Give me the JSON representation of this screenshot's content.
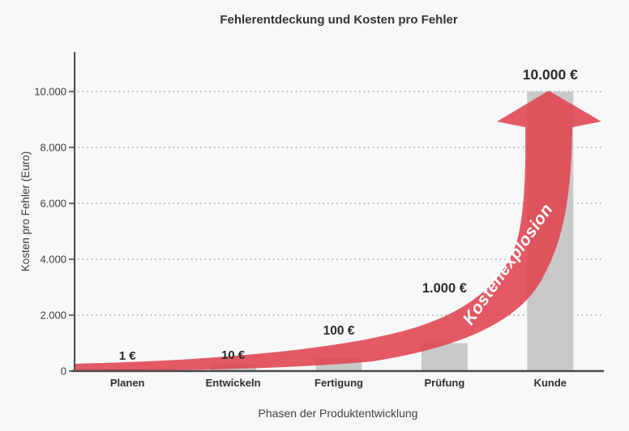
{
  "page": {
    "background": "#f7f8fa"
  },
  "chart_data": {
    "type": "bar",
    "title": "Fehlerentdeckung und Kosten pro Fehler",
    "xlabel": "Phasen der Produktentwicklung",
    "ylabel": "Kosten pro Fehler (Euro)",
    "categories": [
      "Planen",
      "Entwickeln",
      "Fertigung",
      "Prüfung",
      "Kunde"
    ],
    "values": [
      1,
      10,
      100,
      1000,
      10000
    ],
    "value_labels": [
      "1 €",
      "10 €",
      "100 €",
      "1.000 €",
      "10.000 €"
    ],
    "ylim": [
      0,
      10000
    ],
    "ytick_values": [
      0,
      2000,
      4000,
      6000,
      8000,
      10000
    ],
    "ytick_labels": [
      "0",
      "2.000",
      "4.000",
      "6.000",
      "8.000",
      "10.000"
    ],
    "grid": "horizontal-dotted",
    "legend": "none",
    "annotation": {
      "text": "Kostenexplosion",
      "shape": "curved-arrow-up",
      "color": "#e0434d",
      "text_color": "#ffffff"
    },
    "colors": {
      "arrow_red": "#e0434d",
      "bar_gray": "#c8c9ca",
      "axis": "#4a4a4c",
      "grid_dots": "#999999",
      "text_dark": "#333333",
      "background": "#f7f8fa"
    }
  }
}
